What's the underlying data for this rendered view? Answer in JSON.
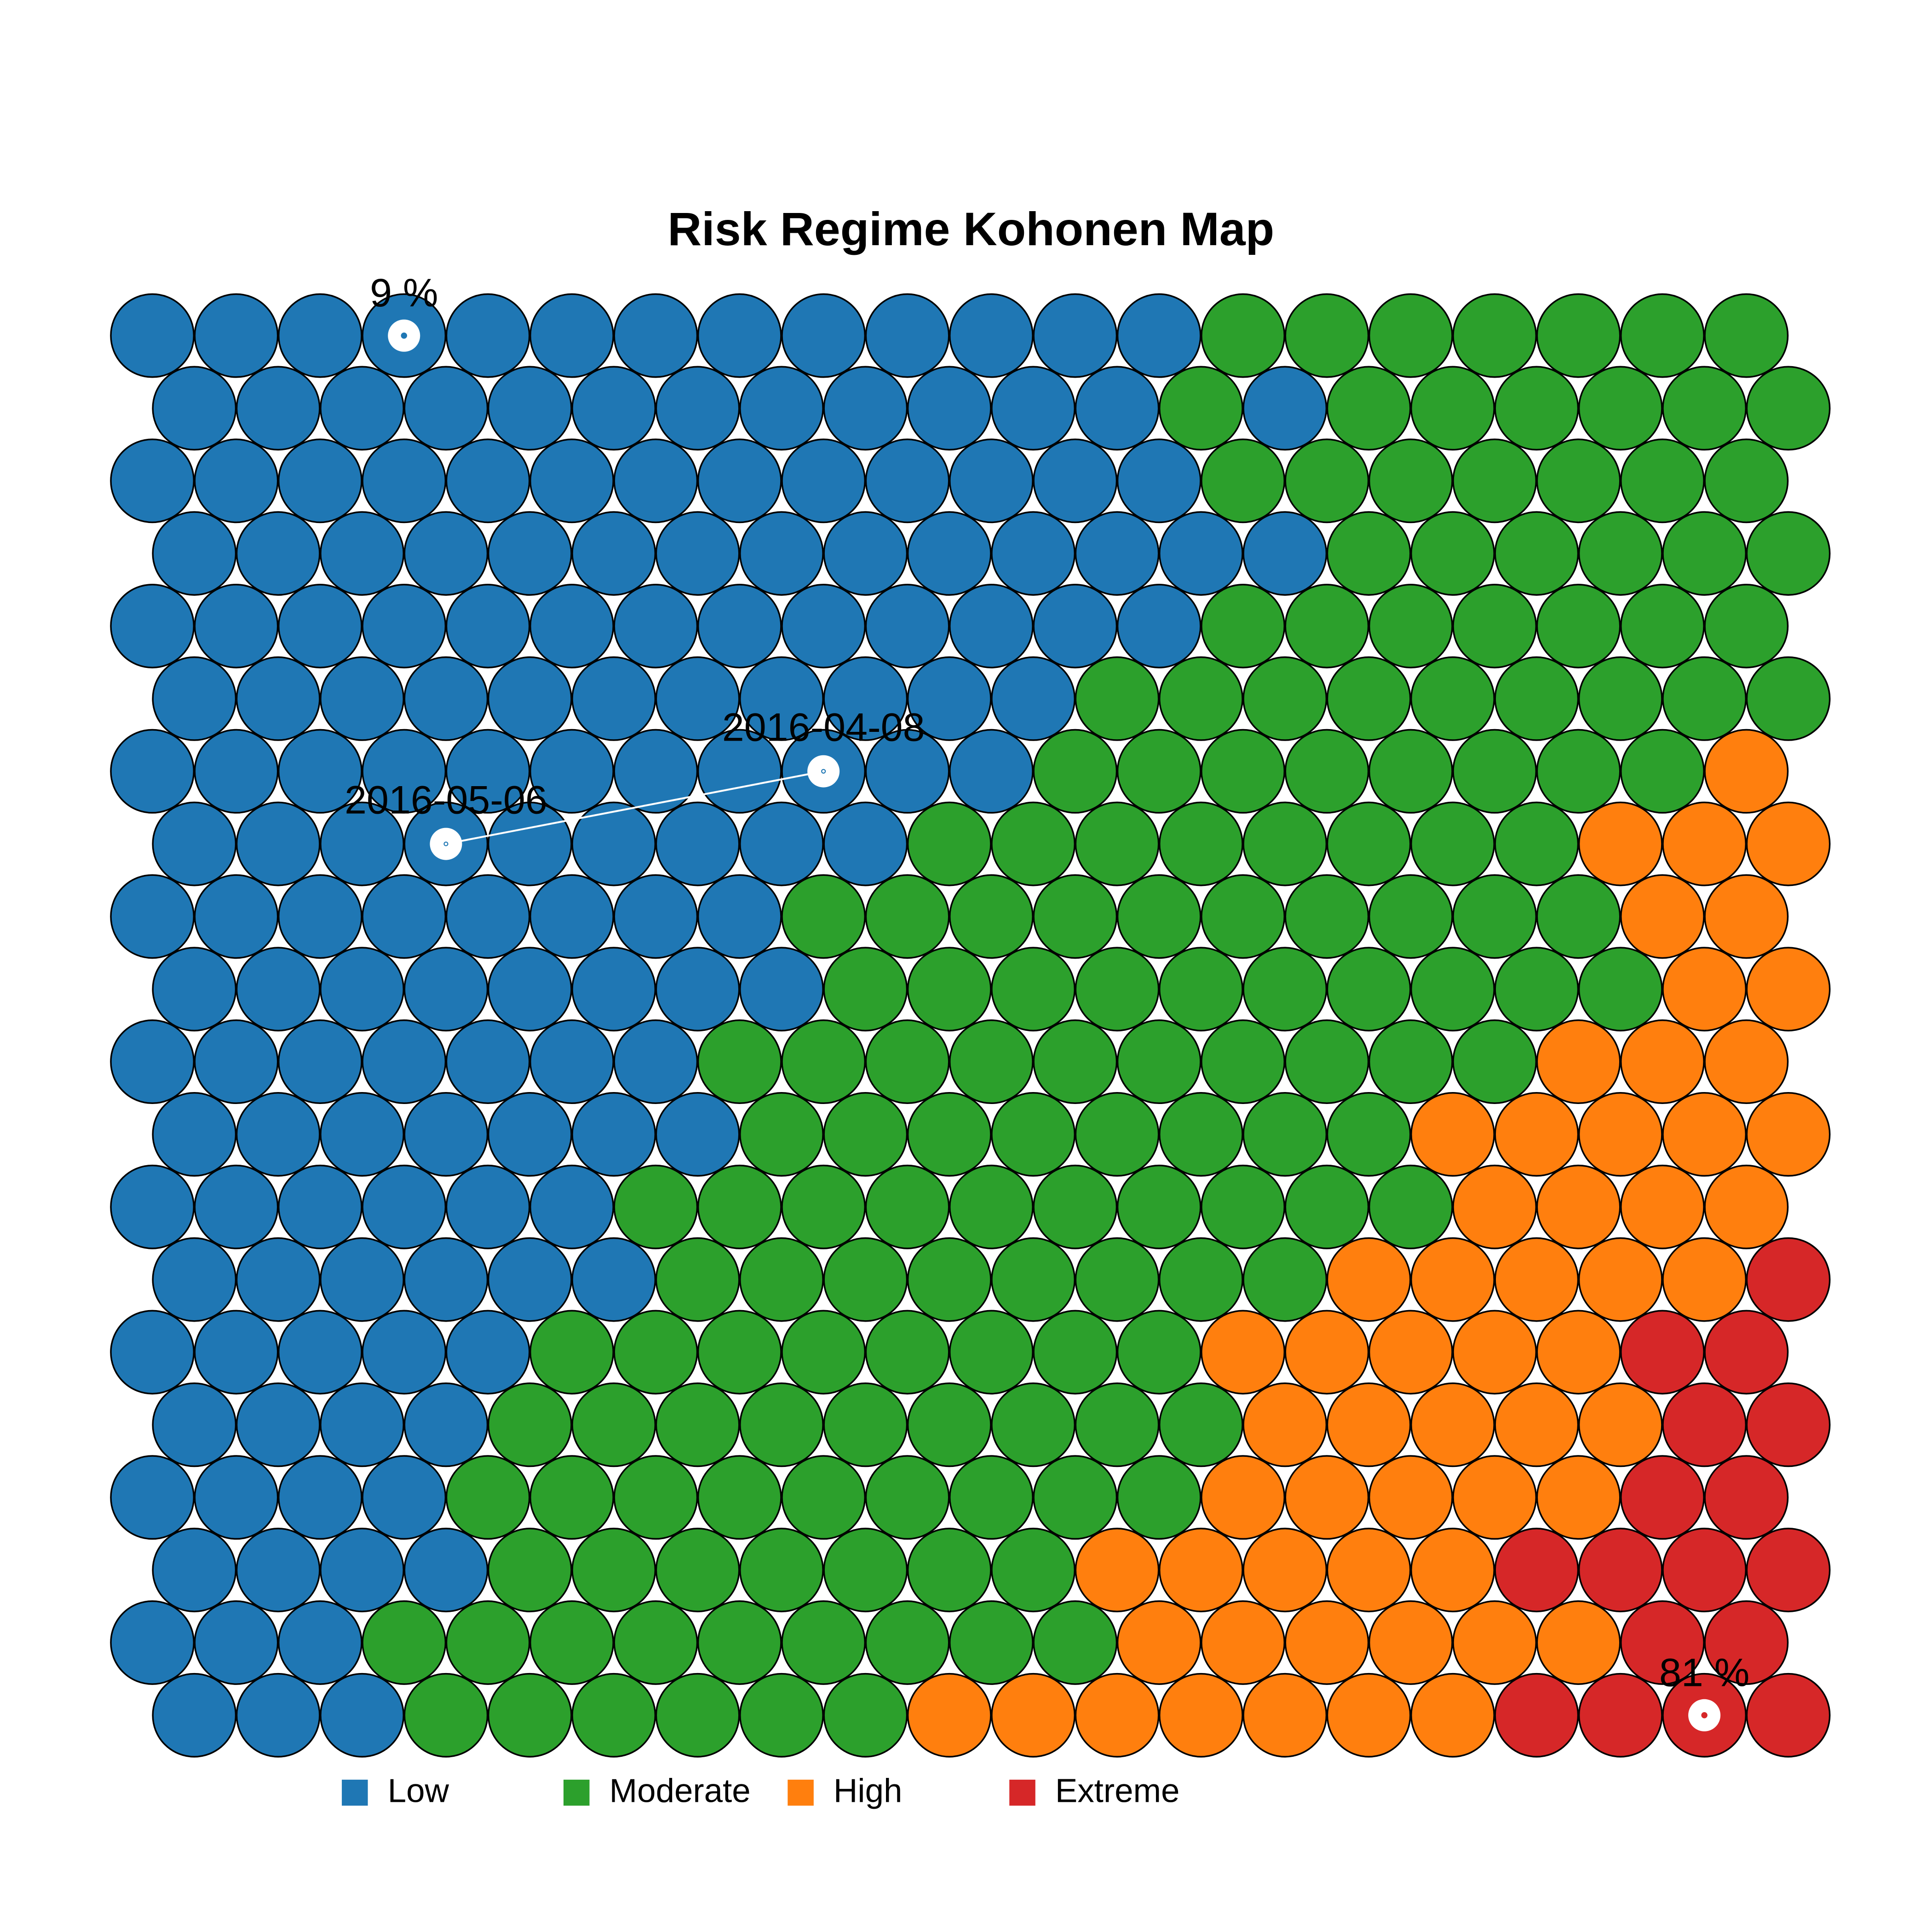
{
  "chart_data": {
    "type": "som",
    "title": "Risk Regime Kohonen Map",
    "classes": [
      {
        "name": "Low",
        "color": "#1f77b4"
      },
      {
        "name": "Moderate",
        "color": "#2ca02c"
      },
      {
        "name": "High",
        "color": "#ff7f0e"
      },
      {
        "name": "Extreme",
        "color": "#d62728"
      }
    ],
    "grid": [
      [
        0,
        0,
        0,
        0,
        0,
        0,
        0,
        0,
        0,
        0,
        0,
        0,
        0,
        1,
        1,
        1,
        1,
        1,
        1,
        1
      ],
      [
        0,
        0,
        0,
        0,
        0,
        0,
        0,
        0,
        0,
        0,
        0,
        0,
        1,
        0,
        1,
        1,
        1,
        1,
        1,
        1
      ],
      [
        0,
        0,
        0,
        0,
        0,
        0,
        0,
        0,
        0,
        0,
        0,
        0,
        0,
        1,
        1,
        1,
        1,
        1,
        1,
        1
      ],
      [
        0,
        0,
        0,
        0,
        0,
        0,
        0,
        0,
        0,
        0,
        0,
        0,
        0,
        0,
        1,
        1,
        1,
        1,
        1,
        1
      ],
      [
        0,
        0,
        0,
        0,
        0,
        0,
        0,
        0,
        0,
        0,
        0,
        0,
        0,
        1,
        1,
        1,
        1,
        1,
        1,
        1
      ],
      [
        0,
        0,
        0,
        0,
        0,
        0,
        0,
        0,
        0,
        0,
        0,
        1,
        1,
        1,
        1,
        1,
        1,
        1,
        1,
        1
      ],
      [
        0,
        0,
        0,
        0,
        0,
        0,
        0,
        0,
        0,
        0,
        0,
        1,
        1,
        1,
        1,
        1,
        1,
        1,
        1,
        2
      ],
      [
        0,
        0,
        0,
        0,
        0,
        0,
        0,
        0,
        0,
        1,
        1,
        1,
        1,
        1,
        1,
        1,
        1,
        2,
        2,
        2
      ],
      [
        0,
        0,
        0,
        0,
        0,
        0,
        0,
        0,
        1,
        1,
        1,
        1,
        1,
        1,
        1,
        1,
        1,
        1,
        2,
        2
      ],
      [
        0,
        0,
        0,
        0,
        0,
        0,
        0,
        0,
        1,
        1,
        1,
        1,
        1,
        1,
        1,
        1,
        1,
        1,
        2,
        2
      ],
      [
        0,
        0,
        0,
        0,
        0,
        0,
        0,
        1,
        1,
        1,
        1,
        1,
        1,
        1,
        1,
        1,
        1,
        2,
        2,
        2
      ],
      [
        0,
        0,
        0,
        0,
        0,
        0,
        0,
        1,
        1,
        1,
        1,
        1,
        1,
        1,
        1,
        2,
        2,
        2,
        2,
        2
      ],
      [
        0,
        0,
        0,
        0,
        0,
        0,
        1,
        1,
        1,
        1,
        1,
        1,
        1,
        1,
        1,
        1,
        2,
        2,
        2,
        2
      ],
      [
        0,
        0,
        0,
        0,
        0,
        0,
        1,
        1,
        1,
        1,
        1,
        1,
        1,
        1,
        2,
        2,
        2,
        2,
        2,
        3
      ],
      [
        0,
        0,
        0,
        0,
        0,
        1,
        1,
        1,
        1,
        1,
        1,
        1,
        1,
        2,
        2,
        2,
        2,
        2,
        3,
        3
      ],
      [
        0,
        0,
        0,
        0,
        1,
        1,
        1,
        1,
        1,
        1,
        1,
        1,
        1,
        2,
        2,
        2,
        2,
        2,
        3,
        3
      ],
      [
        0,
        0,
        0,
        0,
        1,
        1,
        1,
        1,
        1,
        1,
        1,
        1,
        1,
        2,
        2,
        2,
        2,
        2,
        3,
        3
      ],
      [
        0,
        0,
        0,
        0,
        1,
        1,
        1,
        1,
        1,
        1,
        1,
        2,
        2,
        2,
        2,
        2,
        3,
        3,
        3,
        3
      ],
      [
        0,
        0,
        0,
        1,
        1,
        1,
        1,
        1,
        1,
        1,
        1,
        1,
        2,
        2,
        2,
        2,
        2,
        2,
        3,
        3
      ],
      [
        0,
        0,
        0,
        1,
        1,
        1,
        1,
        1,
        1,
        2,
        2,
        2,
        2,
        2,
        2,
        2,
        3,
        3,
        3,
        3
      ]
    ],
    "highlights": [
      {
        "label": "9 %",
        "row": 0,
        "col": 3
      },
      {
        "label": "81 %",
        "row": 19,
        "col": 18
      }
    ],
    "path": [
      {
        "label": "2016-04-08",
        "row": 6,
        "col": 8
      },
      {
        "label": "2016-05-06",
        "row": 7,
        "col": 3
      }
    ]
  }
}
